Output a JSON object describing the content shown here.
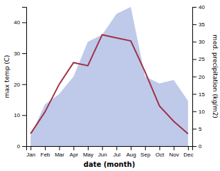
{
  "chart_data": {
    "type": "line",
    "xlabel": "date (month)",
    "ylabel": "max temp (C)",
    "y2label": "med. precipitation (kg/m2)",
    "categories": [
      "Jan",
      "Feb",
      "Mar",
      "Apr",
      "May",
      "Jun",
      "Jul",
      "Aug",
      "Sep",
      "Oct",
      "Nov",
      "Dec"
    ],
    "series": [
      {
        "type": "area",
        "axis": "y2",
        "color": "#b8c4e8",
        "values": [
          3,
          12,
          15,
          20,
          30,
          32,
          38,
          40,
          20,
          18,
          19,
          13
        ]
      },
      {
        "type": "line",
        "color": "#a03045",
        "values": [
          4,
          11,
          20,
          27,
          26,
          36,
          35,
          34,
          24,
          13,
          8,
          4
        ]
      }
    ],
    "ylim": [
      0,
      45
    ],
    "yticks": [
      0,
      10,
      20,
      30,
      40
    ],
    "y2lim": [
      0,
      40
    ],
    "y2ticks": [
      0,
      5,
      10,
      15,
      20,
      25,
      30,
      35,
      40
    ]
  }
}
